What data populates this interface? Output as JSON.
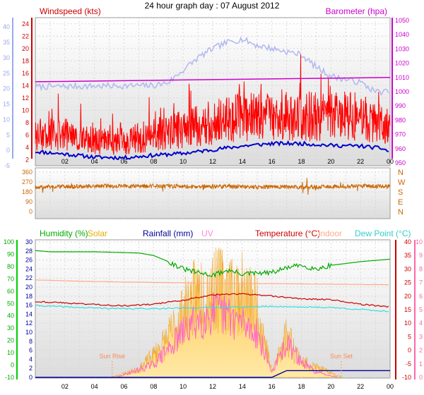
{
  "title": "24 hour graph day : 07 August 2012",
  "x_ticks": [
    "02",
    "04",
    "06",
    "08",
    "10",
    "12",
    "14",
    "16",
    "18",
    "20",
    "22",
    "00"
  ],
  "colors": {
    "wind_gust": "#ff0000",
    "wind_avg": "#0000cc",
    "barometer": "#cc00cc",
    "wind_left_axis": "#9aaae8",
    "wind_right_axis": "#cc0000",
    "baro_trace": "#b0b8f0",
    "direction": "#cc6600",
    "humidity": "#00aa00",
    "solar": "#ffc040",
    "rainfall": "#000099",
    "uv": "#ff66cc",
    "temperature": "#cc0000",
    "indoor": "#ffaa88",
    "dew_point": "#33dddd",
    "uv_axis": "#ff66aa"
  },
  "chart_data": [
    {
      "type": "line",
      "panel": "wind-barometer",
      "title": "24 hour graph day : 07 August 2012",
      "left_axis_label": "Windspeed (kts)",
      "right_axis_label": "Barometer (hpa)",
      "left_outer_ticks": [
        40,
        35,
        30,
        25,
        20,
        15,
        10,
        5,
        0,
        -5
      ],
      "left_inner_ticks": [
        24,
        22,
        20,
        18,
        16,
        14,
        12,
        10,
        8,
        6,
        4,
        2
      ],
      "right_ticks": [
        1050,
        1040,
        1030,
        1020,
        1010,
        1000,
        990,
        980,
        970,
        960,
        950
      ],
      "ylim_wind": [
        1,
        25
      ],
      "ylim_baro": [
        948,
        1052
      ],
      "x_hours": [
        0,
        24
      ],
      "series": [
        {
          "key": "gust",
          "hours": [
            0,
            2,
            4,
            6,
            8,
            10,
            12,
            14,
            16,
            18,
            20,
            22,
            24
          ],
          "values": [
            6,
            6,
            5,
            5,
            6,
            7,
            8,
            9,
            9,
            9,
            9,
            9,
            7
          ]
        },
        {
          "key": "average",
          "hours": [
            0,
            2,
            4,
            6,
            8,
            10,
            12,
            14,
            16,
            18,
            20,
            22,
            23.5,
            24
          ],
          "values": [
            3.3,
            2.9,
            2.4,
            2.3,
            2.7,
            3.0,
            3.6,
            4.2,
            4.6,
            4.6,
            4.3,
            4.2,
            3.8,
            3.2
          ]
        },
        {
          "key": "barometer",
          "hours": [
            0,
            24
          ],
          "values": [
            1007,
            1010
          ]
        },
        {
          "key": "baro-trace",
          "hours": [
            0,
            8,
            9,
            10,
            11,
            12,
            13,
            14,
            15,
            16,
            17,
            18,
            19,
            20,
            21,
            22,
            23,
            24
          ],
          "values": [
            13.8,
            14,
            14.5,
            16.5,
            18.5,
            20,
            21,
            21.5,
            20.5,
            20,
            19.5,
            19,
            17,
            15.5,
            15,
            14.5,
            13,
            13
          ]
        }
      ]
    },
    {
      "type": "line",
      "panel": "wind-direction",
      "right_labels": [
        "N",
        "W",
        "S",
        "E",
        "N"
      ],
      "left_ticks": [
        360,
        270,
        180,
        90,
        0
      ],
      "ylim": [
        0,
        360
      ],
      "series": [
        {
          "key": "direction",
          "hours": [
            0,
            6,
            12,
            18,
            22,
            24
          ],
          "values": [
            225,
            235,
            228,
            222,
            235,
            230
          ]
        }
      ]
    },
    {
      "type": "line",
      "panel": "weather",
      "legend": [
        "Humidity (%)",
        "Solar",
        "Rainfall (mm)",
        "UV",
        "Temperature (°C)",
        "Indoor",
        "Dew Point (°C)"
      ],
      "ticks_humidity": [
        100,
        90,
        80,
        70,
        60,
        50,
        40,
        30,
        20,
        10,
        0,
        -10
      ],
      "ticks_rain": [
        30,
        28,
        26,
        24,
        22,
        20,
        18,
        16,
        14,
        12,
        10,
        8,
        6,
        4,
        2,
        0
      ],
      "ticks_temp": [
        40,
        35,
        30,
        25,
        20,
        15,
        10,
        5,
        0,
        -5,
        -10
      ],
      "ticks_uv": [
        10,
        9,
        8,
        7,
        6,
        5,
        4,
        3,
        2,
        1,
        0
      ],
      "ylim_humidity": [
        -10,
        100
      ],
      "ylim_rain": [
        0,
        30
      ],
      "ylim_temp": [
        -10,
        40
      ],
      "ylim_uv": [
        0,
        10
      ],
      "annotations": [
        "Sun Rise",
        "Sun Set"
      ],
      "annotation_hours": [
        5.2,
        20.7
      ],
      "series": [
        {
          "key": "humidity",
          "hours": [
            0,
            1,
            4,
            7,
            8,
            9,
            10,
            11,
            12,
            13,
            14,
            16,
            17,
            18,
            19,
            20,
            22,
            24
          ],
          "values": [
            93,
            92,
            92,
            91,
            89,
            84,
            78,
            75,
            73,
            77,
            74,
            75,
            79,
            81,
            78,
            81,
            84,
            86
          ]
        },
        {
          "key": "solar",
          "hours": [
            5.2,
            7,
            8,
            9,
            10,
            11,
            12,
            13,
            14,
            15,
            16,
            17,
            18,
            19,
            20.7
          ],
          "values": [
            0.05,
            0.8,
            2.2,
            4.0,
            6.5,
            8.5,
            9.2,
            8.8,
            8.4,
            7.2,
            0.6,
            4.3,
            1.6,
            1.0,
            0.05
          ]
        },
        {
          "key": "uv",
          "hours": [
            5.5,
            8,
            9,
            10,
            11,
            12,
            13,
            14,
            15,
            16,
            17,
            18,
            19,
            20.5
          ],
          "values": [
            0,
            1.0,
            2.2,
            3.5,
            4.5,
            5.0,
            4.8,
            4.2,
            3.5,
            0.4,
            2.6,
            1.2,
            0.4,
            0
          ]
        },
        {
          "key": "rainfall",
          "hours": [
            0,
            16,
            17,
            24
          ],
          "values": [
            0,
            0,
            1.5,
            1.5
          ]
        },
        {
          "key": "temperature",
          "hours": [
            0,
            2,
            6,
            8,
            10,
            12,
            14,
            16,
            18,
            20,
            22,
            24
          ],
          "values": [
            18,
            17.5,
            16.4,
            17,
            18.5,
            20.5,
            20.8,
            20,
            19,
            18.7,
            17,
            16
          ]
        },
        {
          "key": "indoor",
          "hours": [
            0,
            3,
            6,
            9,
            12,
            16,
            20,
            24
          ],
          "values": [
            26,
            25.5,
            25.2,
            25.0,
            24.7,
            24.6,
            24.4,
            24.2
          ]
        },
        {
          "key": "dew-point",
          "hours": [
            0,
            3,
            6,
            9,
            12,
            16,
            20,
            24
          ],
          "values": [
            16.5,
            15.8,
            15.3,
            15.5,
            15.8,
            16.2,
            15.8,
            14.3
          ]
        }
      ]
    }
  ]
}
